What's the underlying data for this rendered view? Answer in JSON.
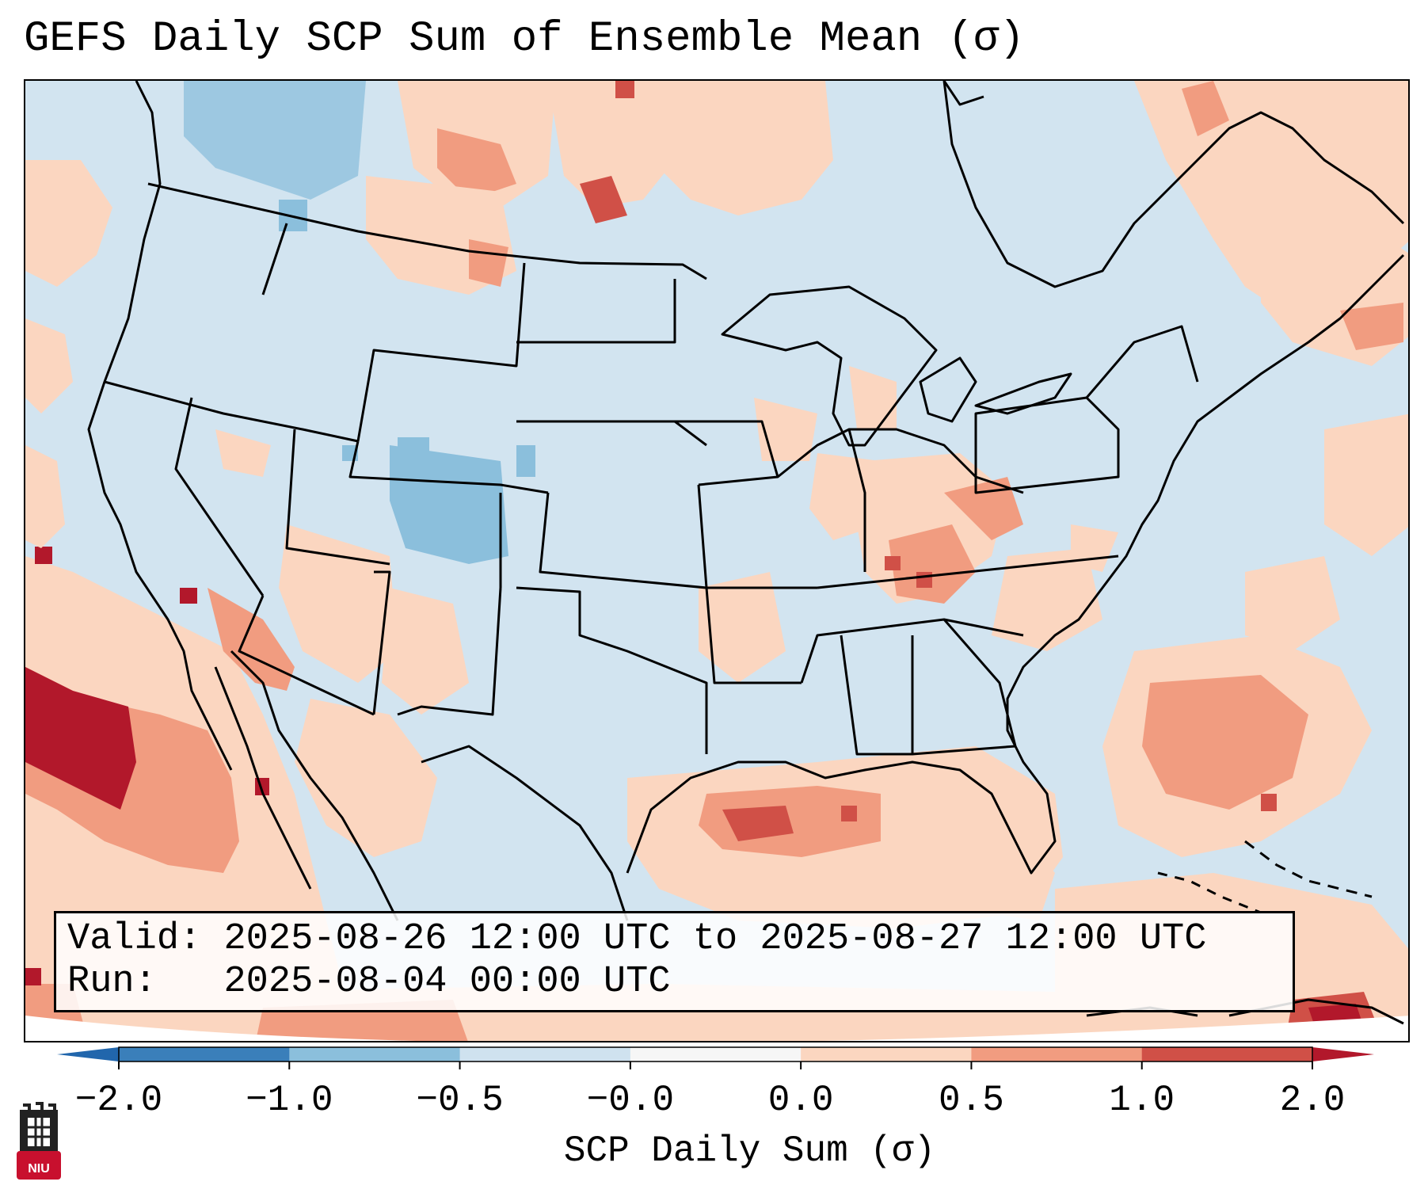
{
  "title": "GEFS Daily SCP Sum of Ensemble Mean (σ)",
  "info": {
    "valid_label": "Valid:",
    "valid_value": "2025-08-26 12:00 UTC to 2025-08-27 12:00 UTC",
    "run_label": "Run:",
    "run_value": "2025-08-04 00:00 UTC"
  },
  "colorbar": {
    "label": "SCP Daily Sum (σ)",
    "ticks": [
      "−2.0",
      "−1.0",
      "−0.5",
      "−0.0",
      "0.0",
      "0.5",
      "1.0",
      "2.0"
    ],
    "bin_colors": [
      "#3a7fba",
      "#8bbfdc",
      "#cfe2ef",
      "#f6f6f6",
      "#fbd6c0",
      "#f19c80",
      "#d05047"
    ],
    "under_color": "#2166ac",
    "over_color": "#b2182b"
  },
  "map": {
    "background_color": "#d2e4f0",
    "region": "Contiguous United States, northern Mexico, Gulf of Mexico, western Atlantic"
  },
  "logo": {
    "text": "NIU",
    "color": "#c8102e"
  }
}
